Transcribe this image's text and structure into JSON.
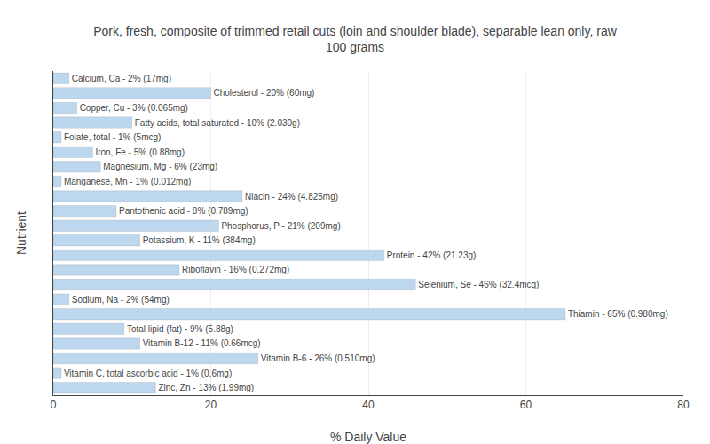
{
  "chart_data": {
    "type": "bar",
    "orientation": "horizontal",
    "title": "Pork, fresh, composite of trimmed retail cuts (loin and shoulder blade), separable lean only, raw\n100 grams",
    "x_label": "% Daily Value",
    "y_label": "Nutrient",
    "categories": [
      "Calcium, Ca - 2% (17mg)",
      "Cholesterol - 20% (60mg)",
      "Copper, Cu - 3% (0.065mg)",
      "Fatty acids, total saturated - 10% (2.030g)",
      "Folate, total - 1% (5mcg)",
      "Iron, Fe - 5% (0.88mg)",
      "Magnesium, Mg - 6% (23mg)",
      "Manganese, Mn - 1% (0.012mg)",
      "Niacin - 24% (4.825mg)",
      "Pantothenic acid - 8% (0.789mg)",
      "Phosphorus, P - 21% (209mg)",
      "Potassium, K - 11% (384mg)",
      "Protein - 42% (21.23g)",
      "Riboflavin - 16% (0.272mg)",
      "Selenium, Se - 46% (32.4mcg)",
      "Sodium, Na - 2% (54mg)",
      "Thiamin - 65% (0.980mg)",
      "Total lipid (fat) - 9% (5.88g)",
      "Vitamin B-12 - 11% (0.66mcg)",
      "Vitamin B-6 - 26% (0.510mg)",
      "Vitamin C, total ascorbic acid - 1% (0.6mg)",
      "Zinc, Zn - 13% (1.99mg)"
    ],
    "values": [
      2,
      20,
      3,
      10,
      1,
      5,
      6,
      1,
      24,
      8,
      21,
      11,
      42,
      16,
      46,
      2,
      65,
      9,
      11,
      26,
      1,
      13
    ],
    "color": "#bdd7ee",
    "xlim": [
      0,
      80
    ],
    "xticks": [
      0,
      20,
      40,
      60,
      80
    ],
    "grid": true,
    "tick_labels": "x"
  }
}
